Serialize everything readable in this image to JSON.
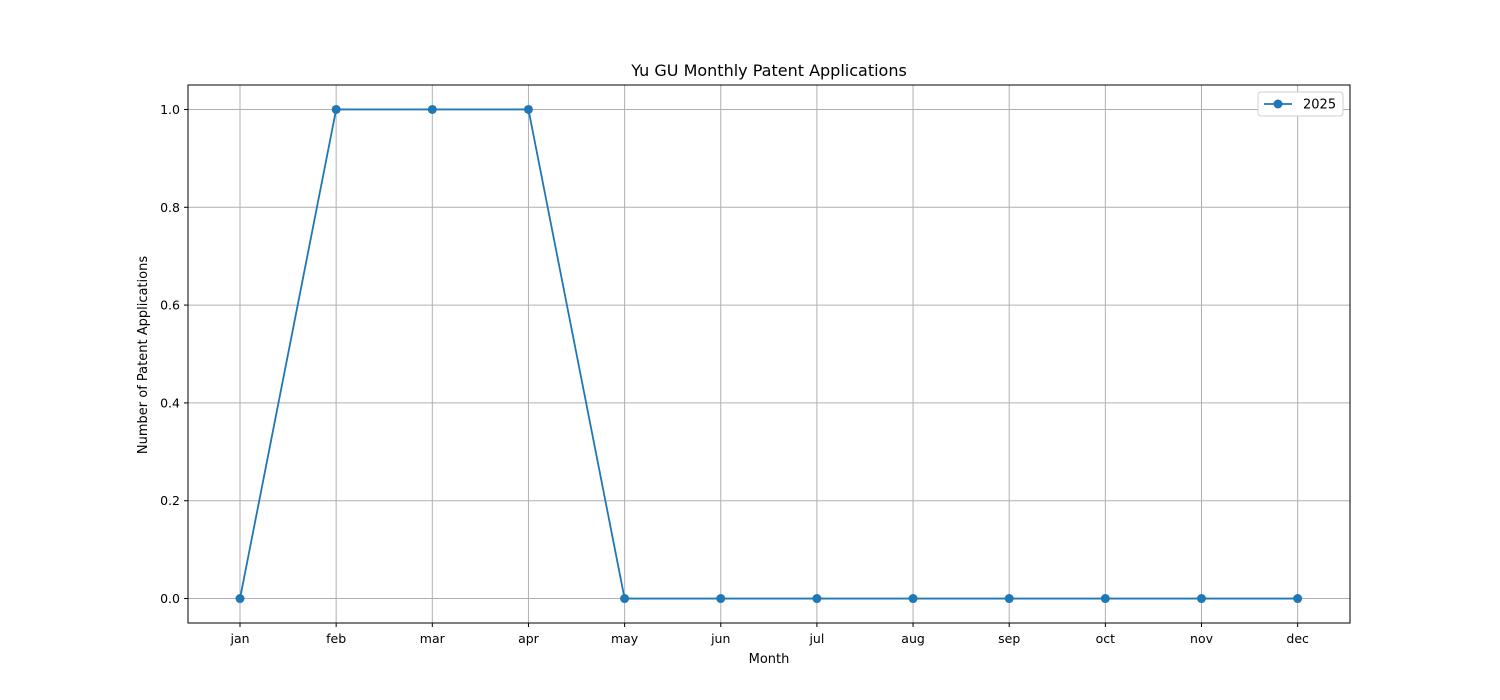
{
  "chart_data": {
    "type": "line",
    "title": "Yu GU Monthly Patent Applications",
    "xlabel": "Month",
    "ylabel": "Number of Patent Applications",
    "categories": [
      "jan",
      "feb",
      "mar",
      "apr",
      "may",
      "jun",
      "jul",
      "aug",
      "sep",
      "oct",
      "nov",
      "dec"
    ],
    "series": [
      {
        "name": "2025",
        "values": [
          0,
          1,
          1,
          1,
          0,
          0,
          0,
          0,
          0,
          0,
          0,
          0
        ],
        "color": "#1f77b4"
      }
    ],
    "ylim": [
      -0.05,
      1.05
    ],
    "yticks": [
      0.0,
      0.2,
      0.4,
      0.6,
      0.8,
      1.0
    ],
    "ytick_labels": [
      "0.0",
      "0.2",
      "0.4",
      "0.6",
      "0.8",
      "1.0"
    ],
    "grid": true,
    "legend_position": "top-right",
    "marker": "circle"
  }
}
